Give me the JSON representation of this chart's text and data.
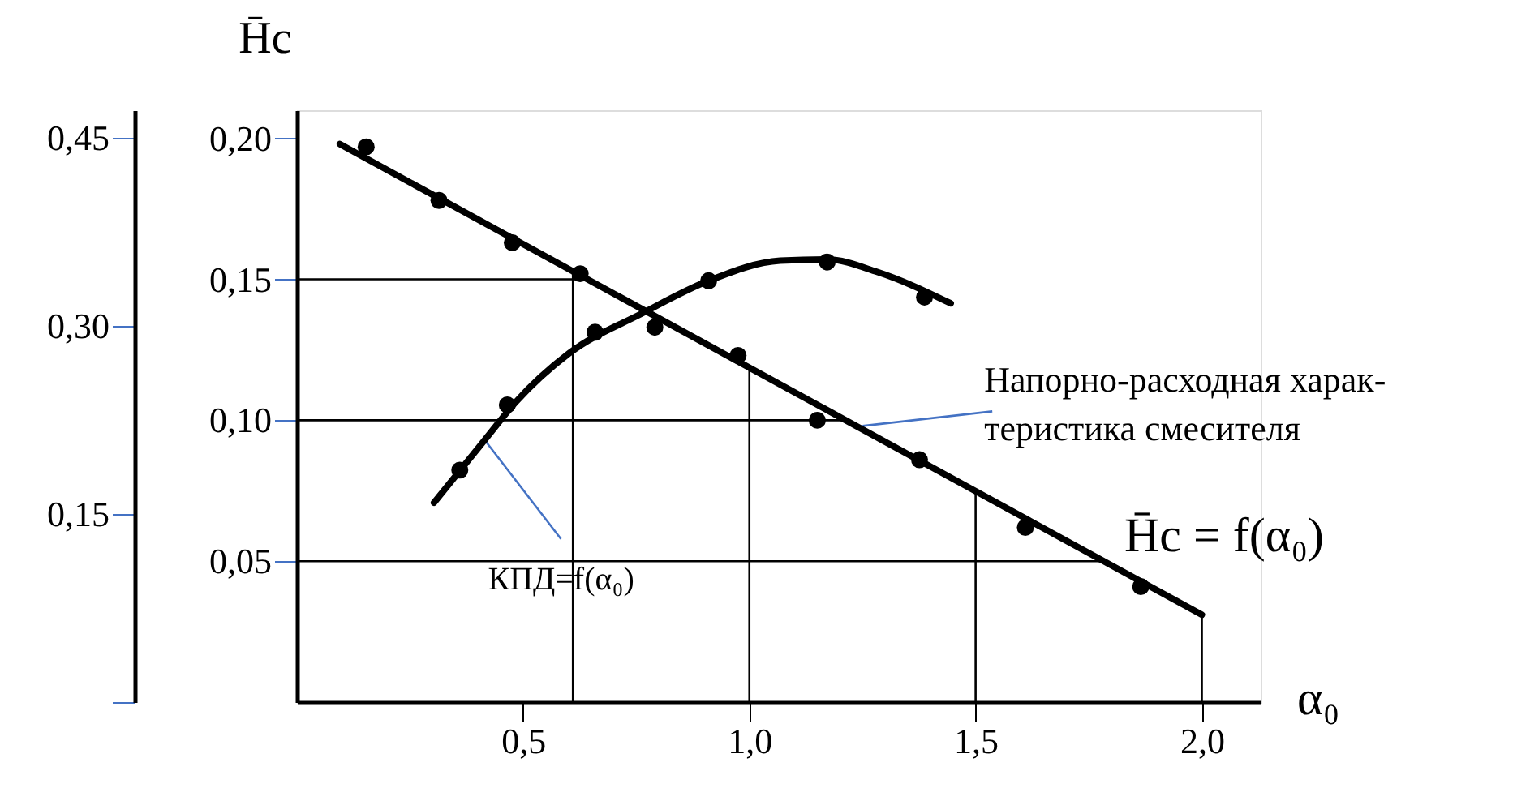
{
  "chart_data": {
    "type": "scatter",
    "xlabel": "α₀",
    "ylabel": "H̄c",
    "xlim": [
      0,
      2.13
    ],
    "xticks": [
      {
        "value": 0.5,
        "label": "0,5"
      },
      {
        "value": 1.0,
        "label": "1,0"
      },
      {
        "value": 1.5,
        "label": "1,5"
      },
      {
        "value": 2.0,
        "label": "2,0"
      }
    ],
    "ylim": [
      0,
      0.21
    ],
    "yticks": [
      {
        "value": 0.05,
        "label": "0,05"
      },
      {
        "value": 0.1,
        "label": "0,10"
      },
      {
        "value": 0.15,
        "label": "0,15"
      },
      {
        "value": 0.2,
        "label": "0,20"
      }
    ],
    "y2lim": [
      0,
      0.472
    ],
    "y2ticks": [
      {
        "value": 0,
        "label": null
      },
      {
        "value": 0.15,
        "label": "0,15"
      },
      {
        "value": 0.3,
        "label": "0,30"
      },
      {
        "value": 0.45,
        "label": "0,45"
      }
    ],
    "series": [
      {
        "color": "#000000",
        "x": [
          0.153,
          0.314,
          0.476,
          0.626,
          0.791,
          0.975,
          1.15,
          1.376,
          1.61,
          1.865
        ],
        "values": [
          0.197,
          0.178,
          0.163,
          0.152,
          0.133,
          0.123,
          0.1,
          0.086,
          0.062,
          0.041
        ]
      },
      {
        "type": "line",
        "marker": "none",
        "color": "#000000",
        "x": [
          0.095,
          2.0
        ],
        "values": [
          0.198,
          0.031
        ]
      },
      {
        "axis": "y2",
        "color": "#000000",
        "x": [
          0.36,
          0.465,
          0.659,
          0.91,
          1.172,
          1.387
        ],
        "values": [
          0.185,
          0.237,
          0.295,
          0.336,
          0.351,
          0.323
        ]
      },
      {
        "type": "line",
        "marker": "none",
        "axis": "y2",
        "color": "#000000",
        "x": [
          0.303,
          0.415,
          0.483,
          0.601,
          0.763,
          0.91,
          1.068,
          1.172,
          1.283,
          1.445
        ],
        "values": [
          0.159,
          0.209,
          0.239,
          0.278,
          0.31,
          0.336,
          0.352,
          0.353,
          0.343,
          0.318
        ]
      }
    ],
    "ref_lines": [
      {
        "axis": "y",
        "value": 0.15,
        "color": "#000000"
      },
      {
        "axis": "y",
        "value": 0.1,
        "color": "#000000"
      },
      {
        "axis": "y",
        "value": 0.05,
        "color": "#000000"
      },
      {
        "axis": "x",
        "value": 0.61,
        "color": "#000000"
      },
      {
        "axis": "x",
        "value": 1.0,
        "color": "#000000"
      },
      {
        "axis": "x",
        "value": 1.5,
        "color": "#000000"
      },
      {
        "axis": "x",
        "value": 2.0,
        "color": "#000000"
      }
    ],
    "annotations": [
      {
        "text": "Напорно-расходная харак-\nтеристика смесителя",
        "x": 1.25,
        "y": 0.098
      },
      {
        "text": "КПД=f(α₀)",
        "x": 0.415,
        "y": 0.093
      },
      "H̄c = f(α₀)"
    ],
    "marker": "circle",
    "line_style": "solid",
    "grid": false
  }
}
